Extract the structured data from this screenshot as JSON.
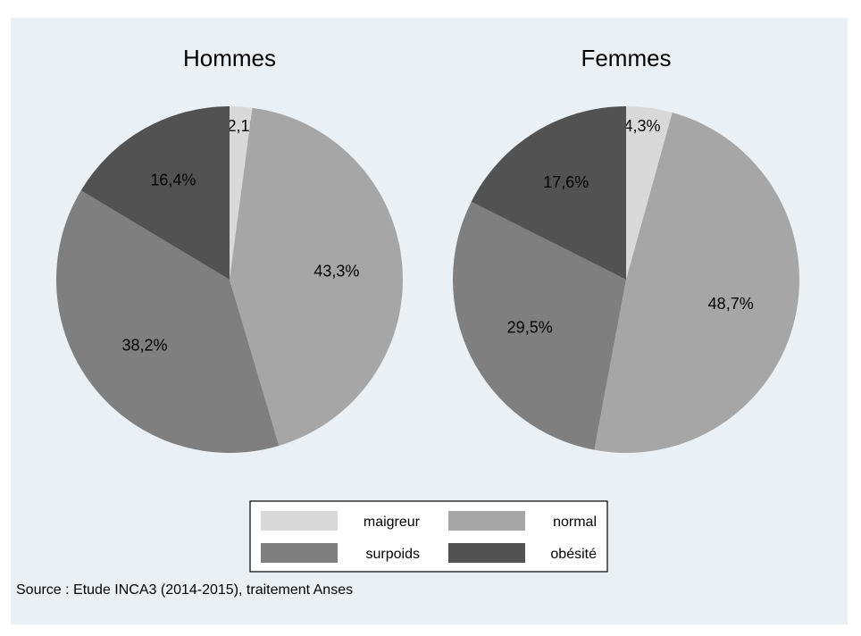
{
  "chart_data": {
    "type": "pie",
    "pies": [
      {
        "title": "Hommes",
        "slices": [
          {
            "category": "maigreur",
            "value": 2.1,
            "label": "2,1%"
          },
          {
            "category": "normal",
            "value": 43.3,
            "label": "43,3%"
          },
          {
            "category": "surpoids",
            "value": 38.2,
            "label": "38,2%"
          },
          {
            "category": "obésité",
            "value": 16.4,
            "label": "16,4%"
          }
        ]
      },
      {
        "title": "Femmes",
        "slices": [
          {
            "category": "maigreur",
            "value": 4.3,
            "label": "4,3%"
          },
          {
            "category": "normal",
            "value": 48.7,
            "label": "48,7%"
          },
          {
            "category": "surpoids",
            "value": 29.5,
            "label": "29,5%"
          },
          {
            "category": "obésité",
            "value": 17.6,
            "label": "17,6%"
          }
        ]
      }
    ],
    "legend": {
      "placement": "bottom",
      "entries": [
        {
          "category": "maigreur",
          "label": "maigreur",
          "color": "#d9d9d9"
        },
        {
          "category": "normal",
          "label": "normal",
          "color": "#a6a6a6"
        },
        {
          "category": "surpoids",
          "label": "surpoids",
          "color": "#7f7f7f"
        },
        {
          "category": "obésité",
          "label": "obésité",
          "color": "#525252"
        }
      ]
    }
  },
  "source": "Source : Etude INCA3 (2014-2015), traitement Anses"
}
